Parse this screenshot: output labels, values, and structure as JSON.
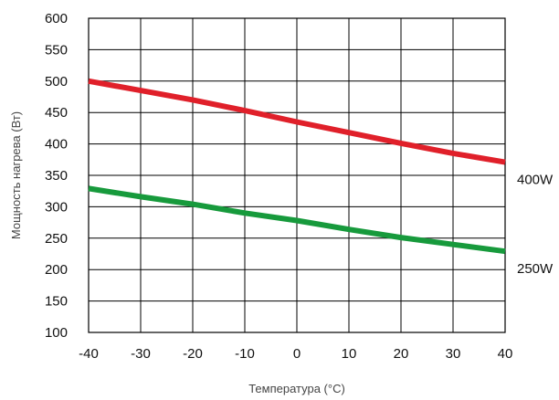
{
  "chart_data": {
    "type": "line",
    "title": "",
    "xlabel": "Температура (°C)",
    "ylabel": "Мощность нагрева (Вт)",
    "xlim": [
      -40,
      40
    ],
    "ylim": [
      100,
      600
    ],
    "x_ticks": [
      "-40",
      "-30",
      "-20",
      "-10",
      "0",
      "10",
      "20",
      "30",
      "40"
    ],
    "y_ticks": [
      "100",
      "150",
      "200",
      "250",
      "300",
      "350",
      "400",
      "450",
      "500",
      "550",
      "600"
    ],
    "grid": true,
    "series": [
      {
        "name": "400W",
        "color": "#e0202a",
        "x": [
          -40,
          -30,
          -20,
          -10,
          0,
          10,
          20,
          30,
          40
        ],
        "y": [
          500,
          485,
          470,
          453,
          435,
          418,
          401,
          385,
          371
        ]
      },
      {
        "name": "250W",
        "color": "#179a3c",
        "x": [
          -40,
          -30,
          -20,
          -10,
          0,
          10,
          20,
          30,
          40
        ],
        "y": [
          329,
          316,
          304,
          290,
          278,
          264,
          251,
          240,
          229
        ]
      }
    ]
  }
}
